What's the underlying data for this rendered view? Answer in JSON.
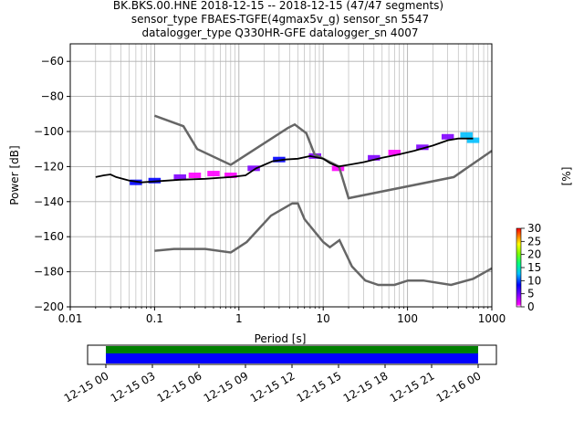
{
  "title_lines": [
    "BK.BKS.00.HNE   2018-12-15 -- 2018-12-15  (47/47 segments)",
    "sensor_type FBAES-TGFE(4gmax5v_g) sensor_sn 5547",
    "datalogger_type Q330HR-GFE datalogger_sn 4007"
  ],
  "chart_data": {
    "type": "line",
    "xscale": "log",
    "xlabel": "Period [s]",
    "ylabel": "Power [dB]",
    "xlim": [
      0.01,
      1000
    ],
    "ylim": [
      -200,
      -50
    ],
    "xticks": [
      {
        "v": 0.01,
        "label": "0.01"
      },
      {
        "v": 0.1,
        "label": "0.1"
      },
      {
        "v": 1,
        "label": "1"
      },
      {
        "v": 10,
        "label": "10"
      },
      {
        "v": 100,
        "label": "100"
      },
      {
        "v": 1000,
        "label": "1000"
      }
    ],
    "yticks": [
      {
        "v": -60,
        "label": "−60"
      },
      {
        "v": -80,
        "label": "−80"
      },
      {
        "v": -100,
        "label": "−100"
      },
      {
        "v": -120,
        "label": "−120"
      },
      {
        "v": -140,
        "label": "−140"
      },
      {
        "v": -160,
        "label": "−160"
      },
      {
        "v": -180,
        "label": "−180"
      },
      {
        "v": -200,
        "label": "−200"
      }
    ],
    "grid": true,
    "nhnm": [
      [
        0.1,
        -91
      ],
      [
        0.22,
        -97
      ],
      [
        0.32,
        -110
      ],
      [
        0.8,
        -119
      ],
      [
        3.8,
        -98
      ],
      [
        4.6,
        -96
      ],
      [
        6.3,
        -101
      ],
      [
        7.9,
        -113
      ],
      [
        15.4,
        -120
      ],
      [
        20,
        -138
      ],
      [
        354,
        -126
      ],
      [
        1000,
        -111
      ]
    ],
    "nlnm": [
      [
        0.1,
        -168
      ],
      [
        0.17,
        -167
      ],
      [
        0.4,
        -167
      ],
      [
        0.8,
        -169
      ],
      [
        1.24,
        -163
      ],
      [
        2.4,
        -148
      ],
      [
        4.3,
        -141
      ],
      [
        5.0,
        -141
      ],
      [
        6.0,
        -150
      ],
      [
        10,
        -163
      ],
      [
        12,
        -166
      ],
      [
        15.6,
        -162
      ],
      [
        21.9,
        -177
      ],
      [
        31.6,
        -185
      ],
      [
        45,
        -187.5
      ],
      [
        70,
        -187.5
      ],
      [
        101,
        -185
      ],
      [
        154,
        -185
      ],
      [
        328,
        -187.5
      ],
      [
        600,
        -184
      ],
      [
        1000,
        -178
      ]
    ],
    "mode_line": [
      [
        0.02,
        -126
      ],
      [
        0.025,
        -125
      ],
      [
        0.03,
        -124.5
      ],
      [
        0.035,
        -126
      ],
      [
        0.05,
        -128
      ],
      [
        0.07,
        -129
      ],
      [
        0.1,
        -128.5
      ],
      [
        0.2,
        -127.5
      ],
      [
        0.4,
        -127
      ],
      [
        0.8,
        -126
      ],
      [
        1.2,
        -125
      ],
      [
        1.6,
        -121
      ],
      [
        2.0,
        -119
      ],
      [
        2.5,
        -117
      ],
      [
        3.5,
        -116
      ],
      [
        5,
        -115.5
      ],
      [
        7,
        -114
      ],
      [
        10,
        -115.5
      ],
      [
        12,
        -118
      ],
      [
        15,
        -120
      ],
      [
        20,
        -119
      ],
      [
        30,
        -117.5
      ],
      [
        50,
        -115
      ],
      [
        80,
        -113
      ],
      [
        120,
        -111
      ],
      [
        200,
        -108
      ],
      [
        300,
        -105
      ],
      [
        400,
        -104
      ],
      [
        600,
        -104
      ]
    ],
    "density_bins": [
      {
        "x": 0.06,
        "y": -129,
        "pct": 8
      },
      {
        "x": 0.1,
        "y": -128,
        "pct": 10
      },
      {
        "x": 0.2,
        "y": -126,
        "pct": 4
      },
      {
        "x": 0.3,
        "y": -125,
        "pct": 2
      },
      {
        "x": 0.5,
        "y": -124,
        "pct": 1
      },
      {
        "x": 0.8,
        "y": -125,
        "pct": 1
      },
      {
        "x": 1.5,
        "y": -121,
        "pct": 4
      },
      {
        "x": 3,
        "y": -116,
        "pct": 8
      },
      {
        "x": 8,
        "y": -114,
        "pct": 6
      },
      {
        "x": 15,
        "y": -121,
        "pct": 2
      },
      {
        "x": 40,
        "y": -115,
        "pct": 5
      },
      {
        "x": 70,
        "y": -112,
        "pct": 3
      },
      {
        "x": 150,
        "y": -109,
        "pct": 6
      },
      {
        "x": 300,
        "y": -103,
        "pct": 4
      },
      {
        "x": 500,
        "y": -102,
        "pct": 15
      },
      {
        "x": 600,
        "y": -105,
        "pct": 12
      }
    ],
    "colorbar": {
      "label": "[%]",
      "ticks": [
        {
          "v": 0,
          "label": "0"
        },
        {
          "v": 5,
          "label": "5"
        },
        {
          "v": 10,
          "label": "10"
        },
        {
          "v": 15,
          "label": "15"
        },
        {
          "v": 20,
          "label": "20"
        },
        {
          "v": 25,
          "label": "25"
        },
        {
          "v": 30,
          "label": "30"
        }
      ],
      "range": [
        0,
        30
      ]
    },
    "time_axis": {
      "labels": [
        "12-15 00",
        "12-15 03",
        "12-15 06",
        "12-15 09",
        "12-15 12",
        "12-15 15",
        "12-15 18",
        "12-15 21",
        "12-16 00"
      ],
      "coverage_color": "#0000ff",
      "gap_free_color": "#008000"
    }
  },
  "colors": {
    "model_curve": "#666666",
    "mode_line": "#000000",
    "grid": "#b0b0b0"
  }
}
